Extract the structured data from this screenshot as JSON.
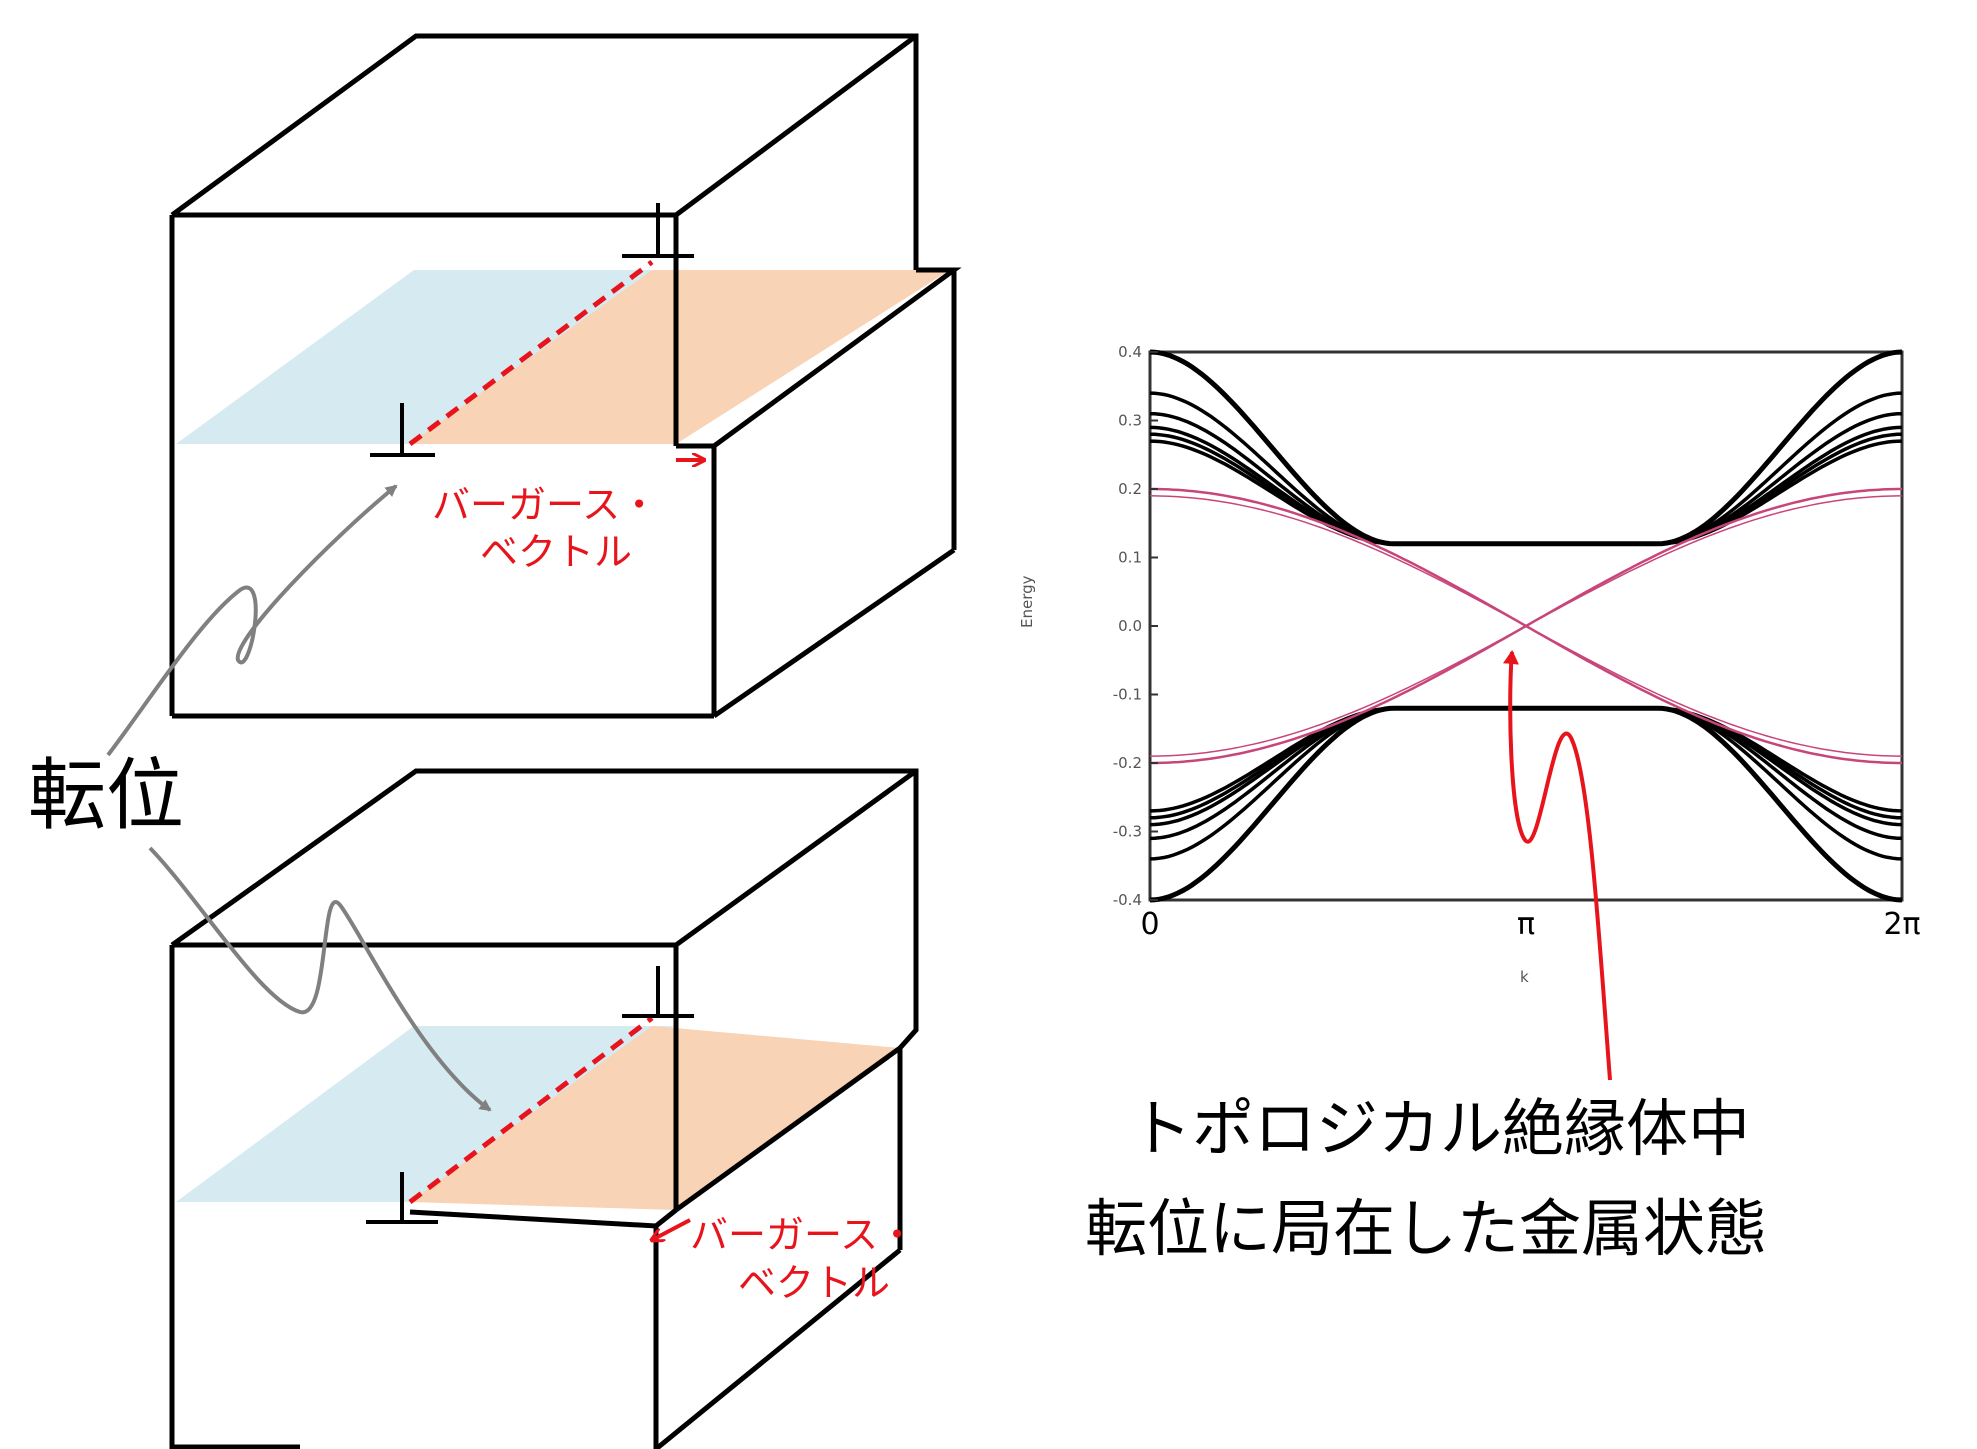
{
  "colors": {
    "red": "#e8141c",
    "blue_plane": "#d6eaf2",
    "orange_plane": "#f8d3b5",
    "gray_arrow": "#808080",
    "pink_band": "#c8457a"
  },
  "labels": {
    "dislocation": "転位",
    "burgers_top_line1": "バーガース・",
    "burgers_top_line2": "ベクトル",
    "burgers_bottom_line1": "バーガース・",
    "burgers_bottom_line2": "ベクトル",
    "caption_line1": "トポロジカル絶縁体中",
    "caption_line2": "転位に局在した金属状態"
  },
  "icons": {
    "dislocation_symbol": "perpendicular-symbol"
  },
  "chart_data": {
    "type": "line",
    "ylabel": "Energy",
    "xlabel": "k",
    "ylim": [
      -0.4,
      0.4
    ],
    "xlim": [
      0,
      6.283
    ],
    "yticks": [
      "0.4",
      "0.3",
      "0.2",
      "0.1",
      "0.0",
      "-0.1",
      "-0.2",
      "-0.3",
      "-0.4"
    ],
    "xticks": [
      "0",
      "π",
      "2π"
    ],
    "series": [
      {
        "color": "#000000",
        "edge_values": [
          0.4,
          0.34,
          0.31,
          0.29,
          0.28,
          0.27
        ],
        "center_value": 0.12
      },
      {
        "color": "#000000",
        "edge_values": [
          -0.4,
          -0.34,
          -0.31,
          -0.29,
          -0.28,
          -0.27
        ],
        "center_value": -0.12
      },
      {
        "color": "#c8457a",
        "edge_values": [
          0.2,
          -0.2
        ],
        "center_value": 0.0,
        "crossing_at": 3.1416
      }
    ]
  }
}
